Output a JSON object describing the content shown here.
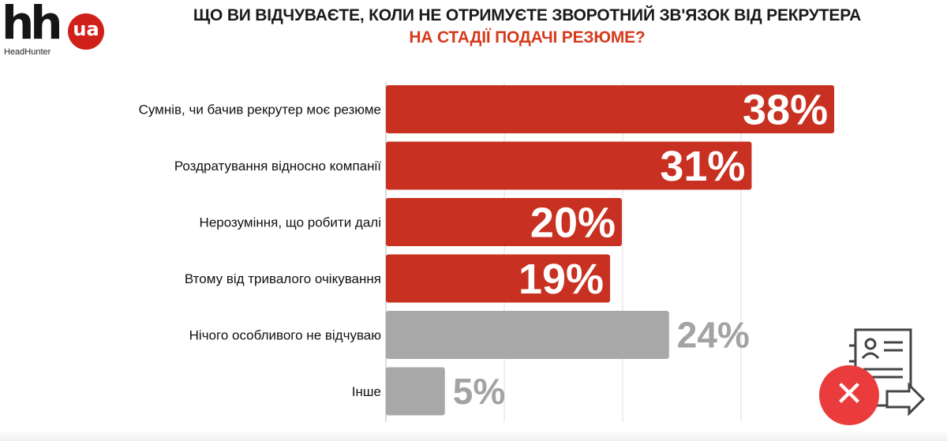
{
  "logo": {
    "mark": "hh",
    "badge": "ua",
    "subtitle": "HeadHunter"
  },
  "header": {
    "title": "ЩО ВИ ВІДЧУВАЄТЕ, КОЛИ НЕ ОТРИМУЄТЕ ЗВОРОТНИЙ ЗВ'ЯЗОК ВІД РЕКРУТЕРА",
    "subtitle": "НА СТАДІЇ ПОДАЧІ РЕЗЮМЕ?"
  },
  "colors": {
    "highlight": "#c83121",
    "neutral": "#a8a8a8",
    "title_accent": "#d53a1d"
  },
  "icons": [
    "resume-document-icon",
    "reject-x-icon",
    "arrow-right-icon"
  ],
  "chart_data": {
    "type": "bar",
    "orientation": "horizontal",
    "categories": [
      "Сумнів, чи бачив рекрутер моє резюме",
      "Роздратування відносно компанії",
      "Нерозуміння, що робити далі",
      "Втому від тривалого очікування",
      "Нічого особливого не відчуваю",
      "Інше"
    ],
    "values": [
      38,
      31,
      20,
      19,
      24,
      5
    ],
    "value_labels": [
      "38%",
      "31%",
      "20%",
      "19%",
      "24%",
      "5%"
    ],
    "bar_colors": [
      "#c83121",
      "#c83121",
      "#c83121",
      "#c83121",
      "#a8a8a8",
      "#a8a8a8"
    ],
    "label_inside": [
      true,
      true,
      true,
      true,
      false,
      false
    ],
    "xlim": [
      0,
      40
    ],
    "grid": true,
    "axis_tick_labels_visible": false
  }
}
